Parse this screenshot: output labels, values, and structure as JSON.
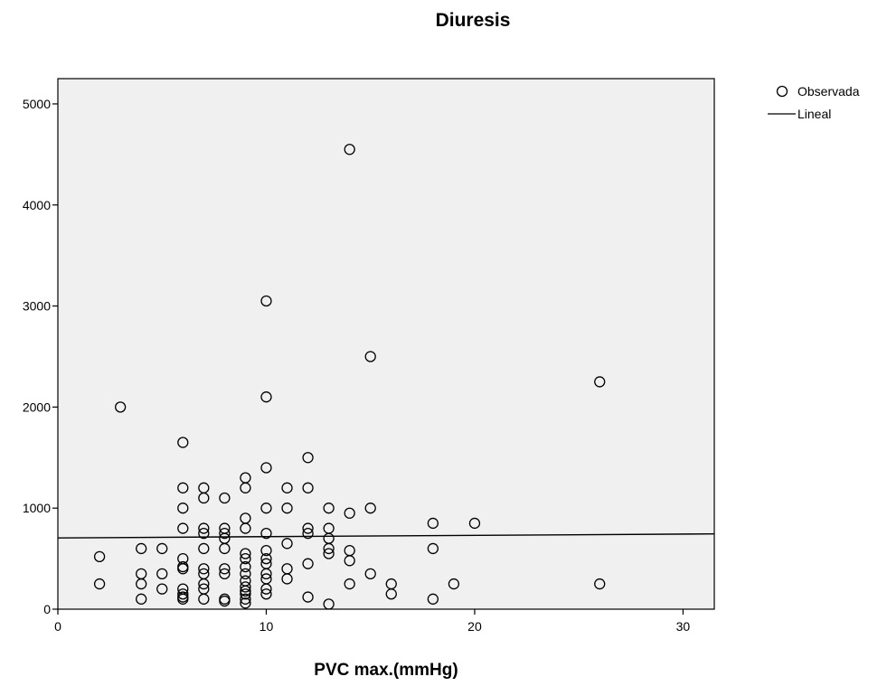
{
  "chart_data": {
    "type": "scatter",
    "title": "Diuresis",
    "xlabel": "PVC max.(mmHg)",
    "ylabel": "",
    "xlim": [
      0,
      31.5
    ],
    "ylim": [
      0,
      5250
    ],
    "xticks": [
      0,
      10,
      20,
      30
    ],
    "yticks": [
      0,
      1000,
      2000,
      3000,
      4000,
      5000
    ],
    "grid": false,
    "legend_position": "top-right",
    "colors": {
      "plot_background": "#f0f0f0",
      "marker_edge": "#000000",
      "line": "#000000"
    },
    "series": [
      {
        "name": "Observada",
        "marker": "open-circle",
        "points": [
          [
            2,
            520
          ],
          [
            2,
            250
          ],
          [
            3,
            2000
          ],
          [
            4,
            600
          ],
          [
            4,
            350
          ],
          [
            4,
            250
          ],
          [
            4,
            100
          ],
          [
            5,
            600
          ],
          [
            5,
            350
          ],
          [
            5,
            200
          ],
          [
            6,
            1650
          ],
          [
            6,
            1200
          ],
          [
            6,
            1000
          ],
          [
            6,
            800
          ],
          [
            6,
            500
          ],
          [
            6,
            420
          ],
          [
            6,
            400
          ],
          [
            6,
            200
          ],
          [
            6,
            150
          ],
          [
            6,
            120
          ],
          [
            6,
            100
          ],
          [
            7,
            1200
          ],
          [
            7,
            1100
          ],
          [
            7,
            800
          ],
          [
            7,
            750
          ],
          [
            7,
            600
          ],
          [
            7,
            400
          ],
          [
            7,
            350
          ],
          [
            7,
            250
          ],
          [
            7,
            200
          ],
          [
            7,
            100
          ],
          [
            8,
            1100
          ],
          [
            8,
            800
          ],
          [
            8,
            750
          ],
          [
            8,
            700
          ],
          [
            8,
            600
          ],
          [
            8,
            400
          ],
          [
            8,
            350
          ],
          [
            8,
            100
          ],
          [
            8,
            80
          ],
          [
            9,
            1300
          ],
          [
            9,
            1200
          ],
          [
            9,
            900
          ],
          [
            9,
            800
          ],
          [
            9,
            550
          ],
          [
            9,
            500
          ],
          [
            9,
            420
          ],
          [
            9,
            350
          ],
          [
            9,
            280
          ],
          [
            9,
            220
          ],
          [
            9,
            180
          ],
          [
            9,
            150
          ],
          [
            9,
            100
          ],
          [
            9,
            60
          ],
          [
            10,
            3050
          ],
          [
            10,
            2100
          ],
          [
            10,
            1400
          ],
          [
            10,
            1000
          ],
          [
            10,
            750
          ],
          [
            10,
            580
          ],
          [
            10,
            500
          ],
          [
            10,
            450
          ],
          [
            10,
            350
          ],
          [
            10,
            300
          ],
          [
            10,
            200
          ],
          [
            10,
            150
          ],
          [
            11,
            1200
          ],
          [
            11,
            1000
          ],
          [
            11,
            650
          ],
          [
            11,
            400
          ],
          [
            11,
            300
          ],
          [
            12,
            1500
          ],
          [
            12,
            1200
          ],
          [
            12,
            800
          ],
          [
            12,
            750
          ],
          [
            12,
            450
          ],
          [
            12,
            120
          ],
          [
            13,
            1000
          ],
          [
            13,
            800
          ],
          [
            13,
            700
          ],
          [
            13,
            600
          ],
          [
            13,
            550
          ],
          [
            13,
            50
          ],
          [
            14,
            4550
          ],
          [
            14,
            950
          ],
          [
            14,
            580
          ],
          [
            14,
            480
          ],
          [
            14,
            250
          ],
          [
            15,
            2500
          ],
          [
            15,
            1000
          ],
          [
            15,
            350
          ],
          [
            16,
            250
          ],
          [
            16,
            150
          ],
          [
            18,
            850
          ],
          [
            18,
            600
          ],
          [
            18,
            100
          ],
          [
            19,
            250
          ],
          [
            20,
            850
          ],
          [
            26,
            2250
          ],
          [
            26,
            250
          ]
        ]
      },
      {
        "name": "Lineal",
        "type": "line",
        "x": [
          0,
          31.5
        ],
        "y": [
          705,
          745
        ]
      }
    ]
  }
}
